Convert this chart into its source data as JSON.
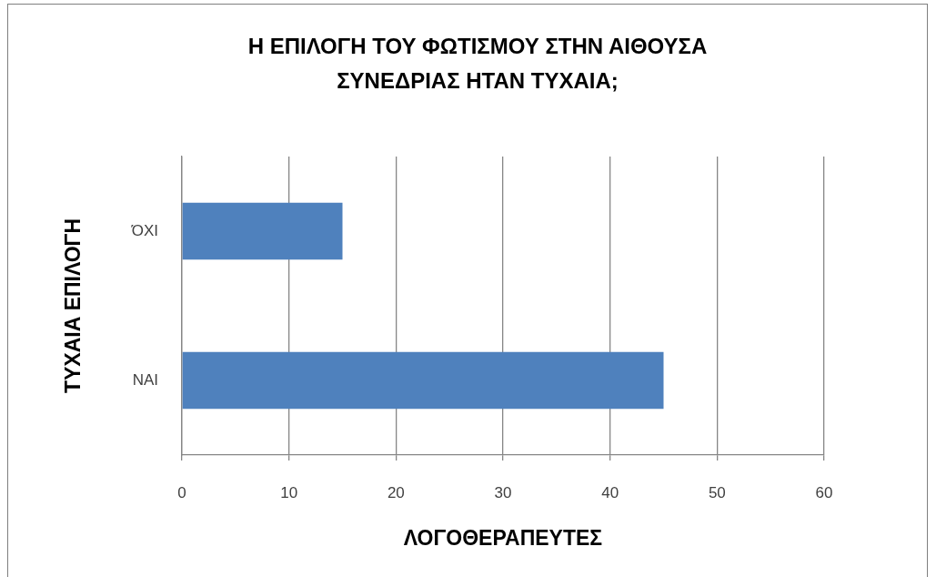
{
  "chart_data": {
    "type": "bar",
    "orientation": "horizontal",
    "title": "Η ΕΠΙΛΟΓΗ ΤΟΥ ΦΩΤΙΣΜΟΥ ΣΤΗΝ ΑΙΘΟΥΣΑ ΣΥΝΕΔΡΙΑΣ ΗΤΑΝ ΤΥΧΑΙΑ;",
    "xlabel": "ΛΟΓΟΘΕΡΑΠΕΥΤΕΣ",
    "ylabel": "ΤΥΧΑΙΑ ΕΠΙΛΟΓΗ",
    "categories": [
      "ΌΧΙ",
      "ΝΑΙ"
    ],
    "values": [
      15,
      45
    ],
    "color": "#4f81bd",
    "xlim": [
      0,
      60
    ],
    "xticks": [
      0,
      10,
      20,
      30,
      40,
      50,
      60
    ],
    "grid": "x"
  }
}
